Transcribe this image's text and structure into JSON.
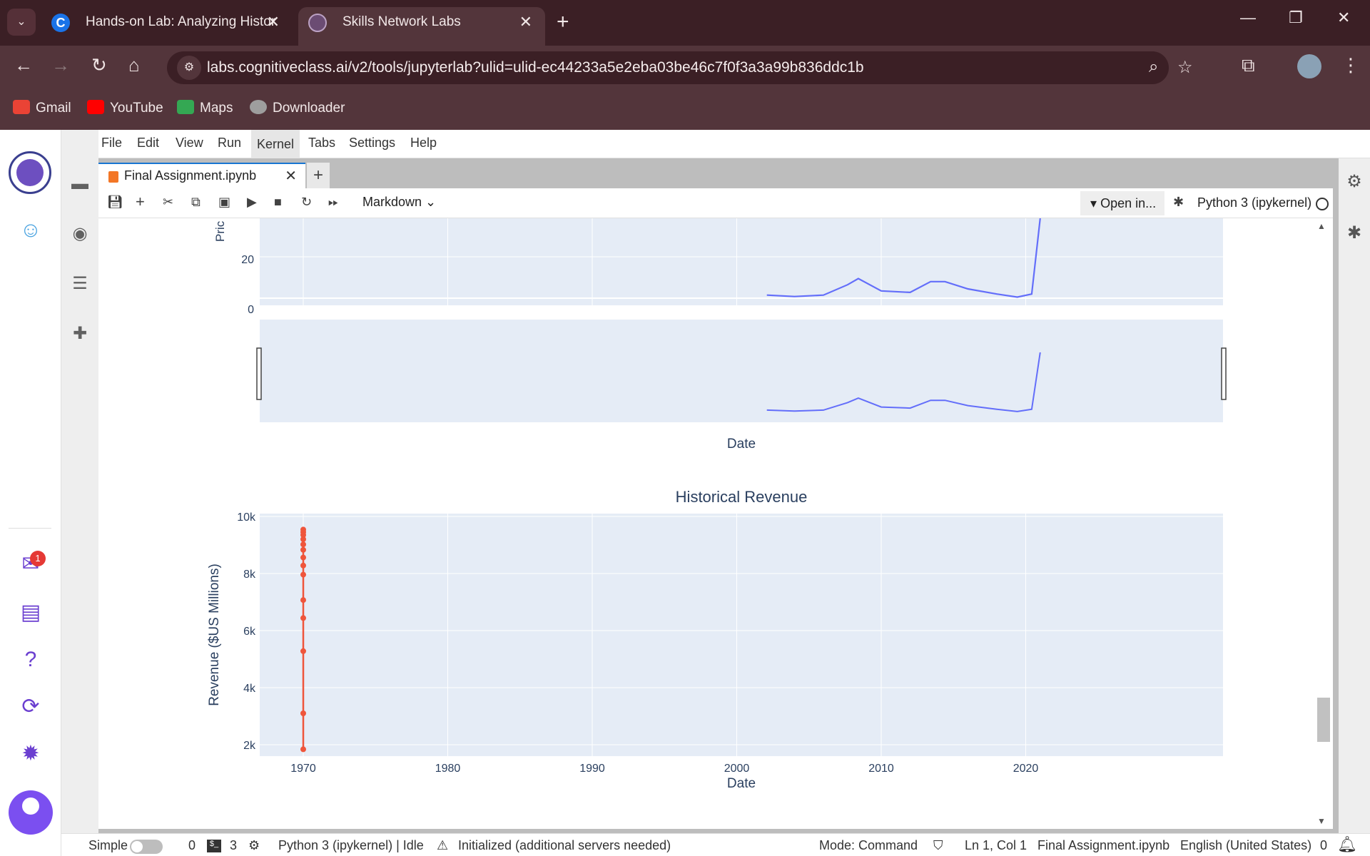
{
  "browser": {
    "tabs": [
      {
        "title": "Hands-on Lab: Analyzing Histor",
        "favicon": "C"
      },
      {
        "title": "Skills Network Labs"
      }
    ],
    "url": "labs.cognitiveclass.ai/v2/tools/jupyterlab?ulid=ulid-ec44233a5e2eba03be46c7f0f3a3a99b836ddc1b",
    "bookmarks": [
      "Gmail",
      "YouTube",
      "Maps",
      "Downloader"
    ]
  },
  "jupyter": {
    "menu": [
      "File",
      "Edit",
      "View",
      "Run",
      "Kernel",
      "Tabs",
      "Settings",
      "Help"
    ],
    "active_menu": "Kernel",
    "doc_tab": "Final Assignment.ipynb",
    "cell_type": "Markdown",
    "open_in": "Open in...",
    "kernel": "Python 3 (ipykernel)",
    "inbox_badge": "1"
  },
  "status": {
    "mode_label": "Simple",
    "count_a": "0",
    "count_b": "3",
    "kernel_status": "Python 3 (ipykernel) | Idle",
    "lsp": "Initialized (additional servers needed)",
    "mode": "Mode: Command",
    "position": "Ln 1, Col 1",
    "file": "Final Assignment.ipynb",
    "language": "English (United States)",
    "notifications": "0"
  },
  "chart_data": [
    {
      "type": "line",
      "title": "",
      "xlabel": "Date",
      "ylabel": "Pric",
      "yticks": [
        "20",
        "0"
      ],
      "color": "#636efa",
      "note": "upper stock-price panel with range slider, partially scrolled out of view",
      "x": [
        "2002-02",
        "2004-01",
        "2006-01",
        "2007-09",
        "2008-06",
        "2010-01",
        "2012-01",
        "2013-06",
        "2014-06",
        "2016-01",
        "2018-01",
        "2019-06",
        "2020-06",
        "2021-01"
      ],
      "y": [
        1.5,
        0.8,
        1.5,
        6.5,
        9.5,
        3.5,
        2.8,
        8.0,
        8.0,
        4.5,
        2.0,
        0.5,
        2.0,
        40.0
      ]
    },
    {
      "type": "line",
      "title": "Historical Revenue",
      "xlabel": "Date",
      "ylabel": "Revenue ($US Millions)",
      "xticks": [
        "1970",
        "1980",
        "1990",
        "2000",
        "2010",
        "2020"
      ],
      "yticks": [
        "10k",
        "8k",
        "6k",
        "4k",
        "2k"
      ],
      "ylim": [
        1600,
        10100
      ],
      "color": "#ef553b",
      "x": [
        1970,
        1970,
        1970,
        1970,
        1970,
        1970,
        1970,
        1970,
        1970,
        1970,
        1970,
        1970,
        1970,
        1970
      ],
      "y": [
        1840,
        3100,
        5280,
        6440,
        7070,
        7960,
        8280,
        8560,
        8830,
        9020,
        9200,
        9350,
        9450,
        9540
      ]
    }
  ]
}
